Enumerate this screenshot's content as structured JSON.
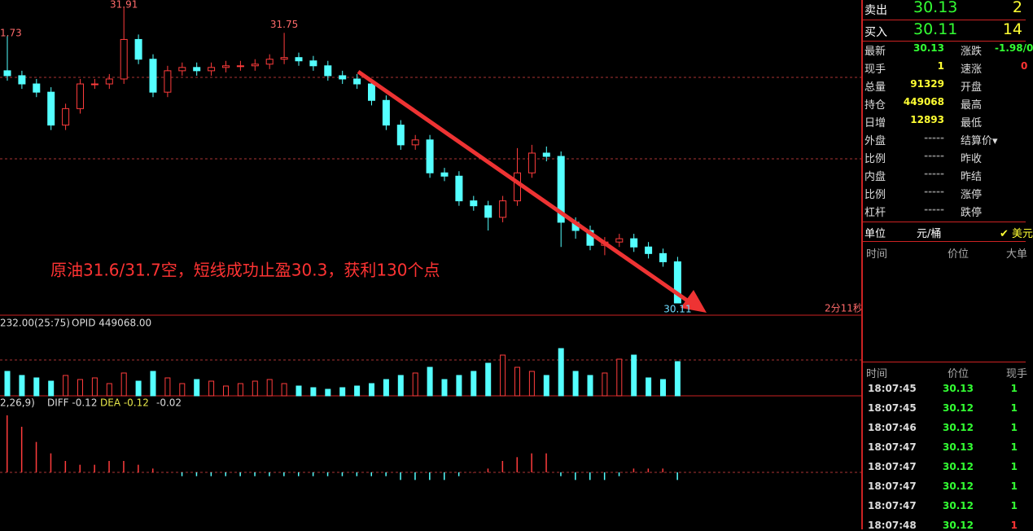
{
  "chart_data": {
    "type": "candlestick",
    "annotation": "原油31.6/31.7空，短线成功止盈30.3，获利130个点",
    "clipped_price_label": "1.73",
    "countdown": "2分11秒",
    "volume_header": {
      "left": "232.00(25:75)",
      "opid": "OPID 449068.00"
    },
    "macd_header": {
      "params": "2,26,9)",
      "diff": "DIFF -0.12",
      "dea": "DEA -0.12"
    },
    "open": [
      31.52,
      31.49,
      31.44,
      31.39,
      31.19,
      31.29,
      31.44,
      31.44,
      31.47,
      31.71,
      31.59,
      31.39,
      31.52,
      31.54,
      31.52,
      31.54,
      31.55,
      31.55,
      31.56,
      31.59,
      31.6,
      31.58,
      31.55,
      31.49,
      31.47,
      31.44,
      31.34,
      31.19,
      31.07,
      31.1,
      30.9,
      30.88,
      30.73,
      30.7,
      30.63,
      30.73,
      30.9,
      31.02,
      31.0,
      30.6,
      30.55,
      30.46,
      30.48,
      30.5,
      30.45,
      30.41,
      30.36
    ],
    "high": [
      31.73,
      31.52,
      31.47,
      31.42,
      31.32,
      31.47,
      31.47,
      31.5,
      31.91,
      31.74,
      31.62,
      31.55,
      31.57,
      31.57,
      31.57,
      31.58,
      31.58,
      31.59,
      31.62,
      31.75,
      31.63,
      31.61,
      31.58,
      31.52,
      31.5,
      31.47,
      31.37,
      31.22,
      31.13,
      31.13,
      30.93,
      30.91,
      30.76,
      30.73,
      30.76,
      31.05,
      31.07,
      31.06,
      31.03,
      30.63,
      30.58,
      30.51,
      30.53,
      30.53,
      30.48,
      30.44,
      30.39
    ],
    "low": [
      31.46,
      31.41,
      31.36,
      31.16,
      31.16,
      31.26,
      31.41,
      31.41,
      31.44,
      31.56,
      31.36,
      31.36,
      31.49,
      31.49,
      31.49,
      31.51,
      31.52,
      31.52,
      31.53,
      31.56,
      31.55,
      31.52,
      31.46,
      31.44,
      31.41,
      31.31,
      31.16,
      31.04,
      31.04,
      30.87,
      30.85,
      30.7,
      30.67,
      30.55,
      30.6,
      30.7,
      30.87,
      30.97,
      30.45,
      30.5,
      30.43,
      30.4,
      30.45,
      30.42,
      30.38,
      30.33,
      30.11
    ],
    "close": [
      31.49,
      31.44,
      31.39,
      31.19,
      31.29,
      31.44,
      31.44,
      31.47,
      31.71,
      31.59,
      31.39,
      31.52,
      31.54,
      31.52,
      31.54,
      31.55,
      31.55,
      31.56,
      31.59,
      31.6,
      31.58,
      31.55,
      31.49,
      31.47,
      31.44,
      31.34,
      31.19,
      31.07,
      31.1,
      30.9,
      30.88,
      30.73,
      30.7,
      30.63,
      30.73,
      30.9,
      31.02,
      31.0,
      30.6,
      30.55,
      30.46,
      30.48,
      30.5,
      30.45,
      30.41,
      30.36,
      30.11
    ],
    "volume": [
      30,
      25,
      22,
      18,
      25,
      20,
      22,
      15,
      28,
      18,
      30,
      22,
      15,
      20,
      18,
      12,
      15,
      18,
      20,
      15,
      12,
      10,
      8,
      10,
      12,
      15,
      20,
      25,
      28,
      35,
      20,
      25,
      30,
      40,
      50,
      35,
      30,
      25,
      58,
      30,
      25,
      28,
      45,
      50,
      22,
      20,
      42
    ],
    "macd": [
      0.15,
      0.12,
      0.08,
      0.05,
      0.03,
      0.02,
      0.02,
      0.03,
      0.03,
      0.02,
      0.01,
      0,
      -0.01,
      -0.01,
      -0.01,
      -0.01,
      -0.01,
      -0.01,
      -0.01,
      -0.01,
      -0.01,
      -0.01,
      -0.01,
      -0.01,
      -0.01,
      -0.01,
      -0.01,
      -0.02,
      -0.02,
      -0.02,
      -0.02,
      -0.01,
      0,
      0.01,
      0.03,
      0.04,
      0.05,
      0.05,
      -0.01,
      -0.02,
      -0.02,
      -0.02,
      -0.01,
      0.01,
      0.01,
      0.01,
      -0.02
    ],
    "up_color": "#ff3c3c",
    "down_color": "#54ffff"
  },
  "quote_panel": {
    "sell": {
      "label": "卖出",
      "price": "30.13",
      "qty": "2"
    },
    "buy": {
      "label": "买入",
      "price": "30.11",
      "qty": "14"
    },
    "stats": [
      {
        "label": "最新",
        "value": "30.13",
        "label2": "涨跌",
        "value2": "-1.98/0"
      },
      {
        "label": "现手",
        "value": "1",
        "label2": "速涨",
        "value2": "0"
      },
      {
        "label": "总量",
        "value": "91329",
        "label2": "开盘"
      },
      {
        "label": "持仓",
        "value": "449068",
        "label2": "最高"
      },
      {
        "label": "日增",
        "value": "12893",
        "label2": "最低"
      },
      {
        "label": "外盘",
        "value": "-----",
        "label2": "结算价▾"
      },
      {
        "label": "比例",
        "value": "-----",
        "label2": "昨收"
      },
      {
        "label": "内盘",
        "value": "-----",
        "label2": "昨结"
      },
      {
        "label": "比例",
        "value": "-----",
        "label2": "涨停"
      },
      {
        "label": "杠杆",
        "value": "-----",
        "label2": "跌停"
      }
    ],
    "unit": {
      "label": "单位",
      "value": "元/桶",
      "currency": "✔ 美元"
    },
    "big_header": [
      "时间",
      "价位",
      "大单"
    ],
    "trades_header": [
      "时间",
      "价位",
      "现手"
    ],
    "trades": [
      [
        "18:07:45",
        "30.13",
        "1"
      ],
      [
        "18:07:45",
        "30.12",
        "1"
      ],
      [
        "18:07:46",
        "30.12",
        "1"
      ],
      [
        "18:07:47",
        "30.13",
        "1"
      ],
      [
        "18:07:47",
        "30.12",
        "1"
      ],
      [
        "18:07:47",
        "30.12",
        "1"
      ],
      [
        "18:07:47",
        "30.12",
        "1"
      ],
      [
        "18:07:48",
        "30.12",
        "1"
      ]
    ]
  }
}
